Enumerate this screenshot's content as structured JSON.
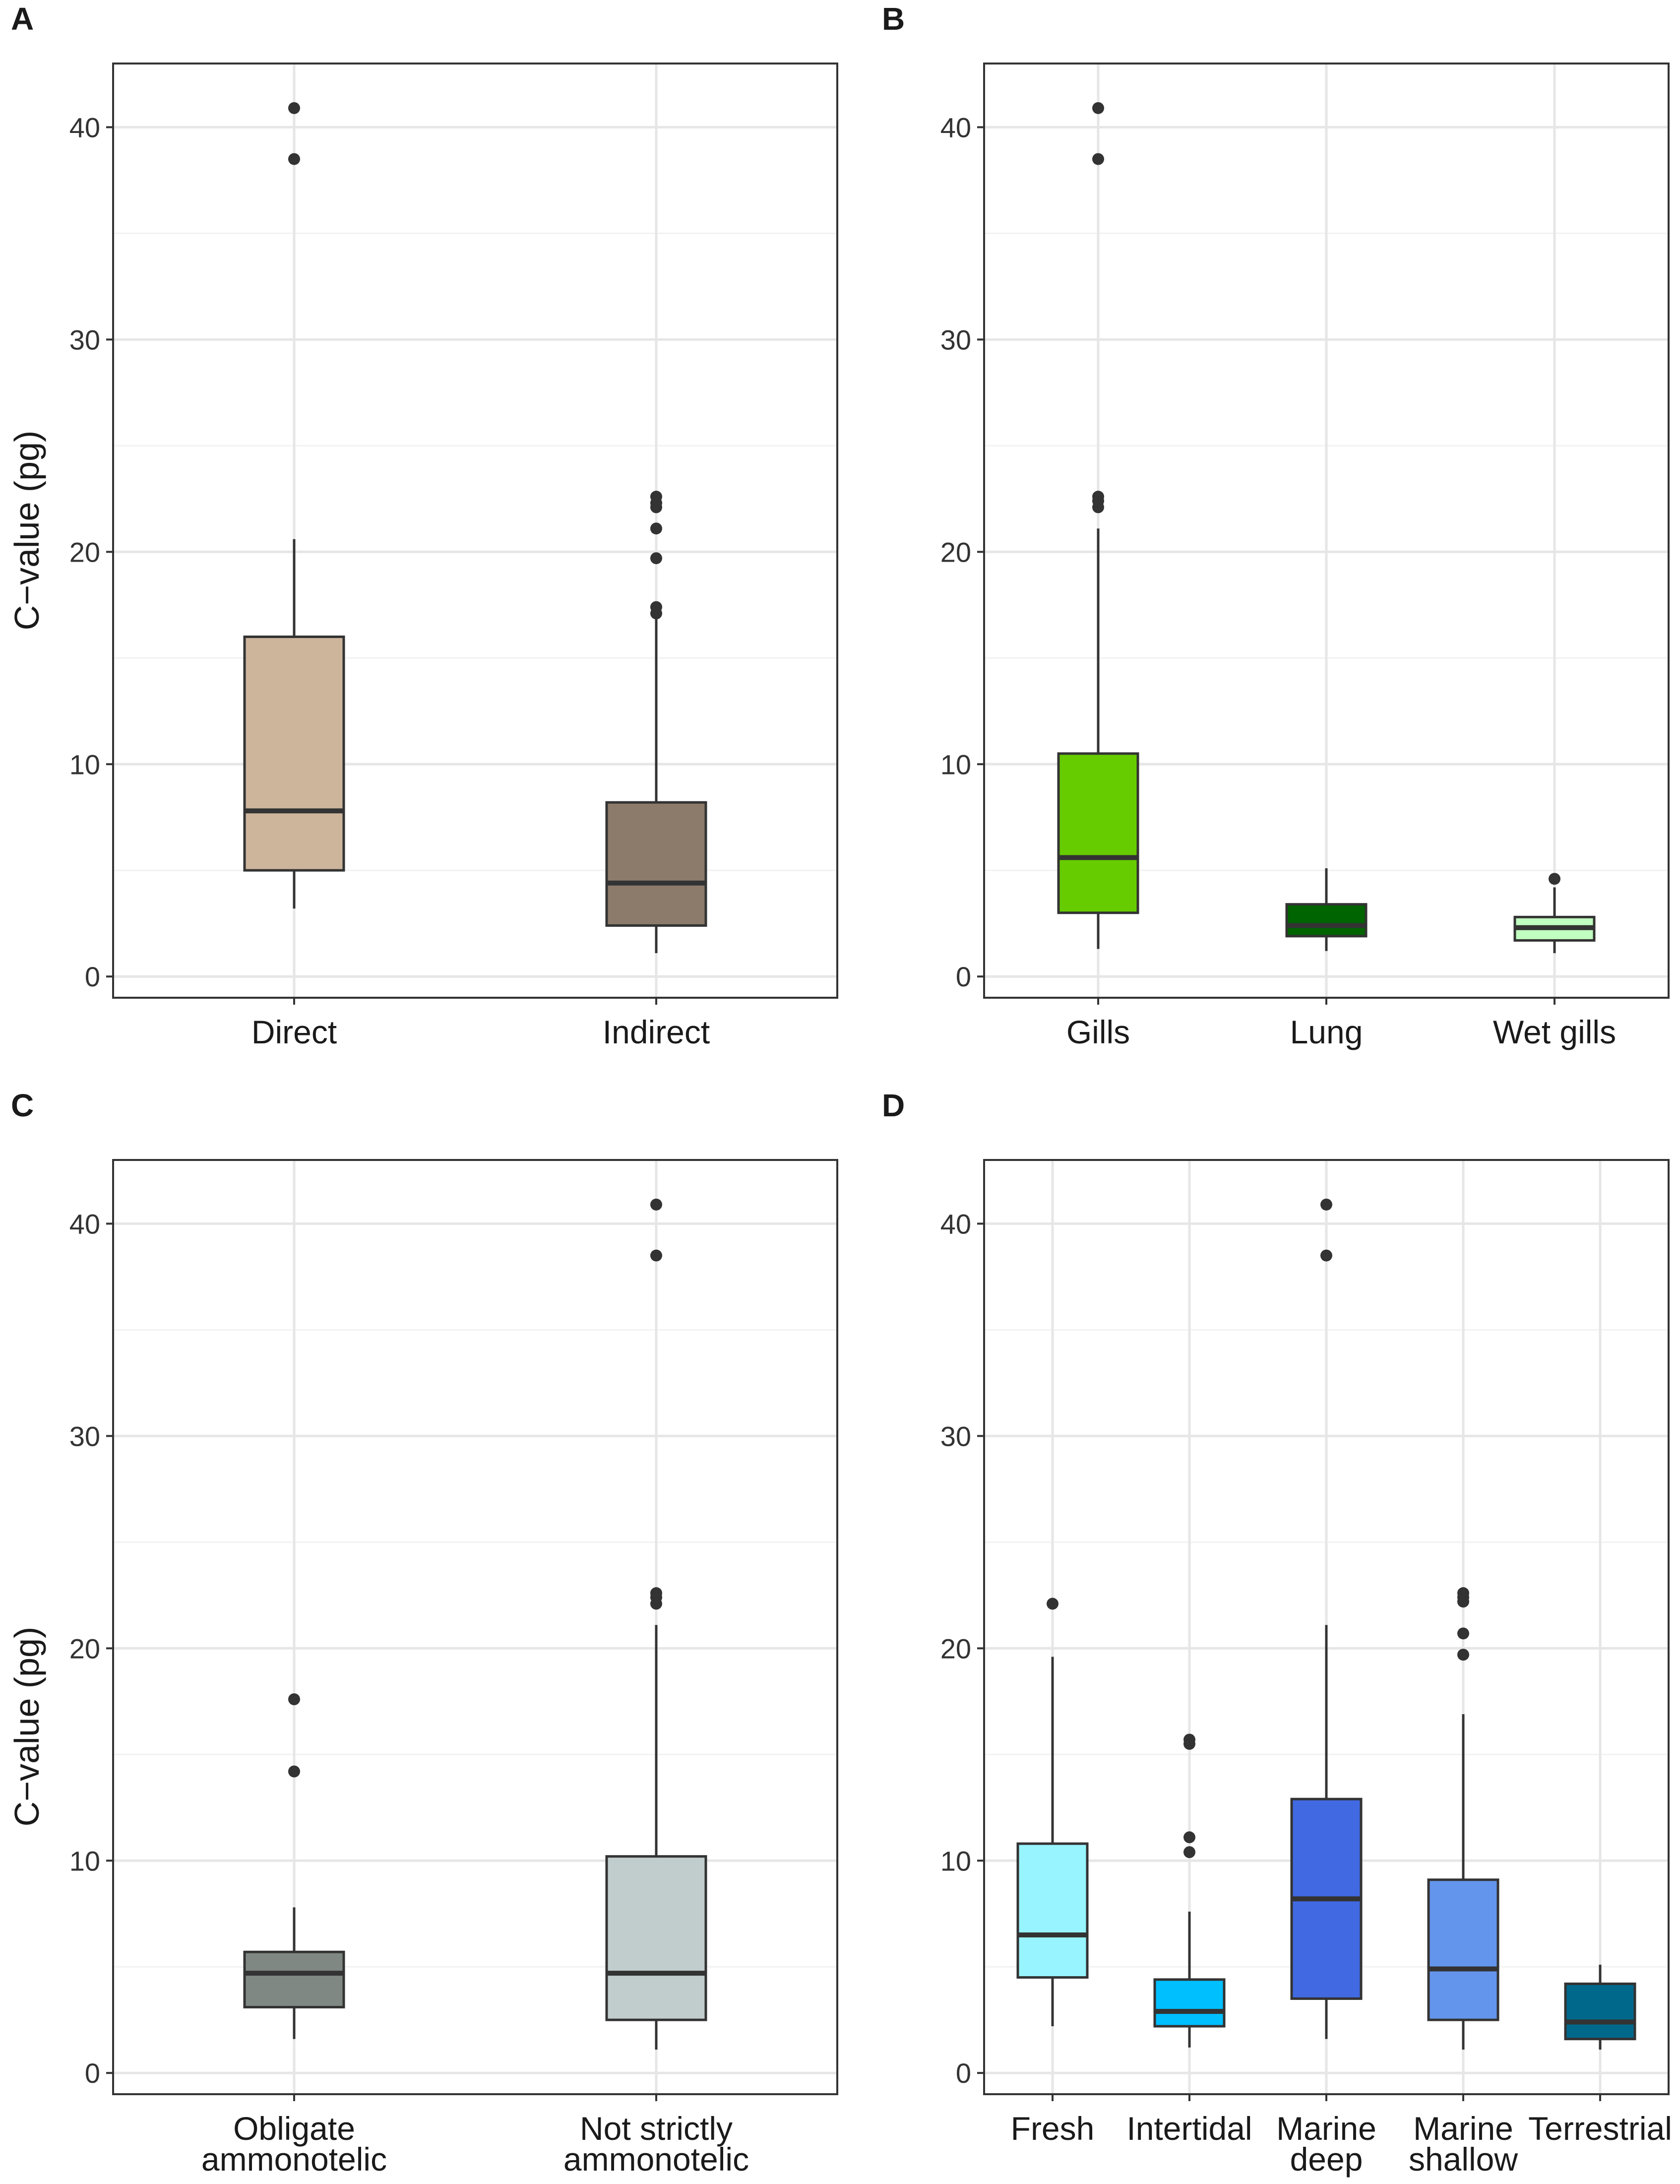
{
  "figure": {
    "y_axis_title": "C−value (pg)"
  },
  "chart_data": [
    {
      "panel": "A",
      "type": "box",
      "ylabel": "C−value (pg)",
      "ylim": [
        -1,
        43
      ],
      "yticks": [
        0,
        10,
        20,
        30,
        40
      ],
      "categories": [
        {
          "label": [
            "Direct"
          ],
          "color": "#cdb59c",
          "min": 3.2,
          "q1": 5.0,
          "median": 7.8,
          "q3": 16.0,
          "max": 20.6,
          "outliers": [
            38.5,
            40.9
          ]
        },
        {
          "label": [
            "Indirect"
          ],
          "color": "#8c7a6b",
          "min": 1.1,
          "q1": 2.4,
          "median": 4.4,
          "q3": 8.2,
          "max": 16.9,
          "outliers": [
            17.1,
            17.4,
            19.7,
            21.1,
            22.1,
            22.3,
            22.6
          ]
        }
      ]
    },
    {
      "panel": "B",
      "type": "box",
      "ylabel": "",
      "ylim": [
        -1,
        43
      ],
      "yticks": [
        0,
        10,
        20,
        30,
        40
      ],
      "categories": [
        {
          "label": [
            "Gills"
          ],
          "color": "#66cc00",
          "min": 1.3,
          "q1": 3.0,
          "median": 5.6,
          "q3": 10.5,
          "max": 21.1,
          "outliers": [
            22.1,
            22.4,
            22.6,
            38.5,
            40.9
          ]
        },
        {
          "label": [
            "Lung"
          ],
          "color": "#006400",
          "min": 1.2,
          "q1": 1.9,
          "median": 2.4,
          "q3": 3.4,
          "max": 5.1,
          "outliers": []
        },
        {
          "label": [
            "Wet gills"
          ],
          "color": "#c1ffc1",
          "min": 1.1,
          "q1": 1.7,
          "median": 2.3,
          "q3": 2.8,
          "max": 4.2,
          "outliers": [
            4.6
          ]
        }
      ]
    },
    {
      "panel": "C",
      "type": "box",
      "ylabel": "C−value (pg)",
      "ylim": [
        -1,
        43
      ],
      "yticks": [
        0,
        10,
        20,
        30,
        40
      ],
      "categories": [
        {
          "label": [
            "Obligate",
            "ammonotelic"
          ],
          "color": "#7f8883",
          "min": 1.6,
          "q1": 3.1,
          "median": 4.7,
          "q3": 5.7,
          "max": 7.8,
          "outliers": [
            14.2,
            17.6
          ]
        },
        {
          "label": [
            "Not strictly",
            "ammonotelic"
          ],
          "color": "#c1cdcd",
          "min": 1.1,
          "q1": 2.5,
          "median": 4.7,
          "q3": 10.2,
          "max": 21.1,
          "outliers": [
            22.1,
            22.4,
            22.6,
            38.5,
            40.9
          ]
        }
      ]
    },
    {
      "panel": "D",
      "type": "box",
      "ylabel": "",
      "ylim": [
        -1,
        43
      ],
      "yticks": [
        0,
        10,
        20,
        30,
        40
      ],
      "categories": [
        {
          "label": [
            "Fresh"
          ],
          "color": "#98f5ff",
          "min": 2.2,
          "q1": 4.5,
          "median": 6.5,
          "q3": 10.8,
          "max": 19.6,
          "outliers": [
            22.1
          ]
        },
        {
          "label": [
            "Intertidal"
          ],
          "color": "#00bfff",
          "min": 1.2,
          "q1": 2.2,
          "median": 2.9,
          "q3": 4.4,
          "max": 7.6,
          "outliers": [
            10.4,
            11.1,
            15.5,
            15.7
          ]
        },
        {
          "label": [
            "Marine",
            "deep"
          ],
          "color": "#4169e1",
          "min": 1.6,
          "q1": 3.5,
          "median": 8.2,
          "q3": 12.9,
          "max": 21.1,
          "outliers": [
            38.5,
            40.9
          ]
        },
        {
          "label": [
            "Marine",
            "shallow"
          ],
          "color": "#6495ed",
          "min": 1.1,
          "q1": 2.5,
          "median": 4.9,
          "q3": 9.1,
          "max": 16.9,
          "outliers": [
            19.7,
            20.7,
            22.2,
            22.4,
            22.6
          ]
        },
        {
          "label": [
            "Terrestrial"
          ],
          "color": "#00688b",
          "min": 1.1,
          "q1": 1.6,
          "median": 2.4,
          "q3": 4.2,
          "max": 5.1,
          "outliers": []
        }
      ]
    }
  ]
}
